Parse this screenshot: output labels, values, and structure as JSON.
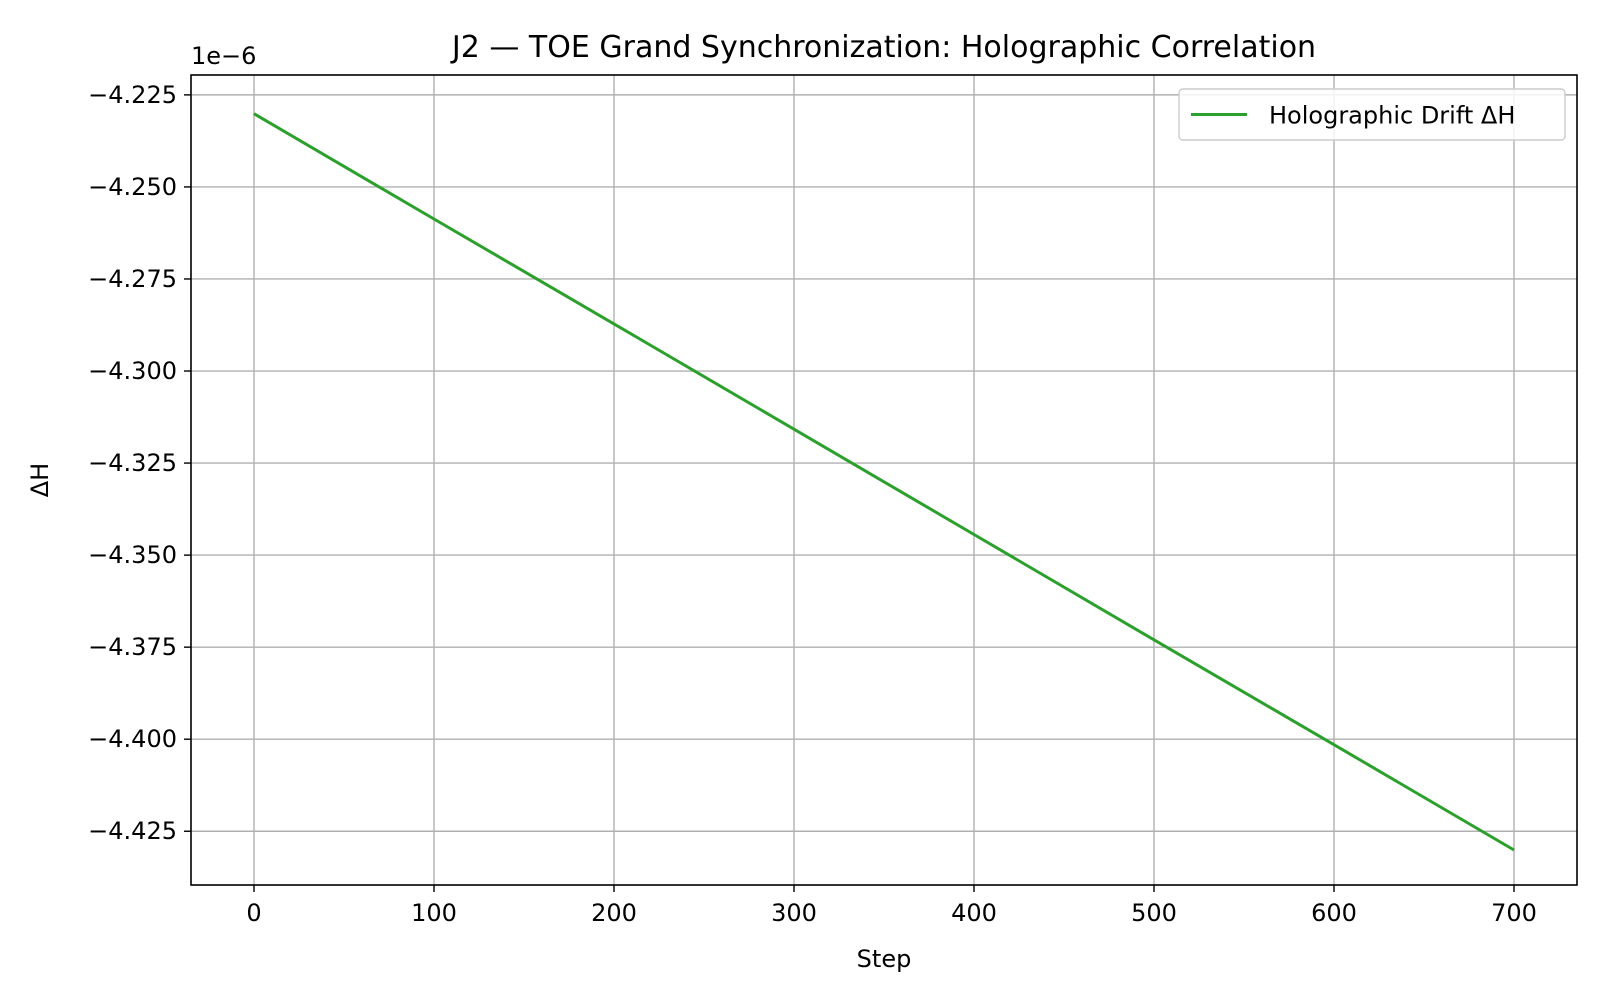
{
  "chart_data": {
    "type": "line",
    "title": "J2 — TOE Grand Synchronization: Holographic Correlation",
    "xlabel": "Step",
    "ylabel": "ΔH",
    "y_offset_label": "1e−6",
    "xlim": [
      -35,
      735
    ],
    "ylim": [
      -4.4396,
      -4.2196
    ],
    "x_ticks": [
      0,
      100,
      200,
      300,
      400,
      500,
      600,
      700
    ],
    "x_tick_labels": [
      "0",
      "100",
      "200",
      "300",
      "400",
      "500",
      "600",
      "700"
    ],
    "y_ticks": [
      -4.225,
      -4.25,
      -4.275,
      -4.3,
      -4.325,
      -4.35,
      -4.375,
      -4.4,
      -4.425
    ],
    "y_tick_labels": [
      "−4.225",
      "−4.250",
      "−4.275",
      "−4.300",
      "−4.325",
      "−4.350",
      "−4.375",
      "−4.400",
      "−4.425"
    ],
    "grid": true,
    "legend_position": "top-right",
    "series": [
      {
        "name": "Holographic Drift ΔH",
        "color": "#2ca02c",
        "x": [
          0,
          100,
          200,
          300,
          400,
          500,
          600,
          700
        ],
        "y": [
          -4.2301,
          -4.2587,
          -4.2872,
          -4.3158,
          -4.3444,
          -4.373,
          -4.4015,
          -4.4301
        ]
      }
    ]
  }
}
